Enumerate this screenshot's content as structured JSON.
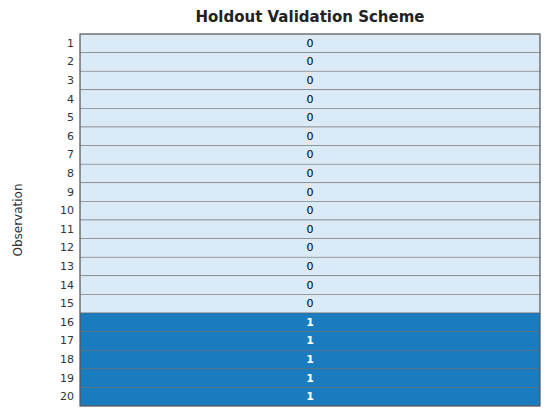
{
  "chart_data": {
    "type": "heatmap",
    "title": "Holdout Validation Scheme",
    "y_label": "Observation",
    "categories": [
      "1",
      "2",
      "3",
      "4",
      "5",
      "6",
      "7",
      "8",
      "9",
      "10",
      "11",
      "12",
      "13",
      "14",
      "15",
      "16",
      "17",
      "18",
      "19",
      "20"
    ],
    "values": [
      [
        0
      ],
      [
        0
      ],
      [
        0
      ],
      [
        0
      ],
      [
        0
      ],
      [
        0
      ],
      [
        0
      ],
      [
        0
      ],
      [
        0
      ],
      [
        0
      ],
      [
        0
      ],
      [
        0
      ],
      [
        0
      ],
      [
        0
      ],
      [
        0
      ],
      [
        1
      ],
      [
        1
      ],
      [
        1
      ],
      [
        1
      ],
      [
        1
      ]
    ],
    "colors": [
      "#daeaf6",
      "#1a7bbf"
    ],
    "data_labels": true,
    "tick_labels": "y"
  }
}
